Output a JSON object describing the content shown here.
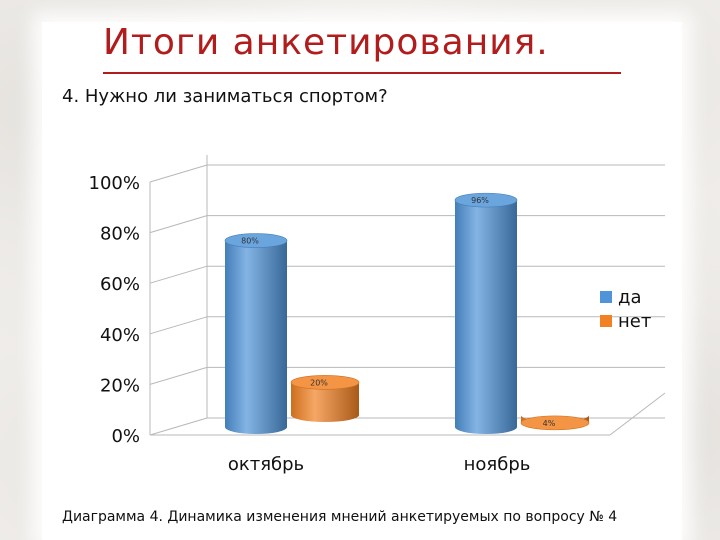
{
  "title": "Итоги анкетирования.",
  "question": "4. Нужно ли заниматься спортом?",
  "caption": "Диаграмма 4. Динамика изменения мнений анкетируемых по вопросу № 4",
  "colors": {
    "title": "#b11c1c",
    "series_da": "#4f94d8",
    "series_net": "#f28123"
  },
  "chart_data": {
    "type": "bar",
    "categories": [
      "октябрь",
      "ноябрь"
    ],
    "series": [
      {
        "name": "да",
        "values": [
          80,
          96
        ],
        "labels": [
          "80%",
          "96%"
        ],
        "color": "#4f94d8"
      },
      {
        "name": "нет",
        "values": [
          20,
          4
        ],
        "labels": [
          "20%",
          "4%"
        ],
        "color": "#f28123"
      }
    ],
    "ylim": [
      0,
      100
    ],
    "yticks": [
      "0%",
      "20%",
      "40%",
      "60%",
      "80%",
      "100%"
    ],
    "grid": true,
    "legend": "right",
    "style": "3d-cylinder"
  }
}
